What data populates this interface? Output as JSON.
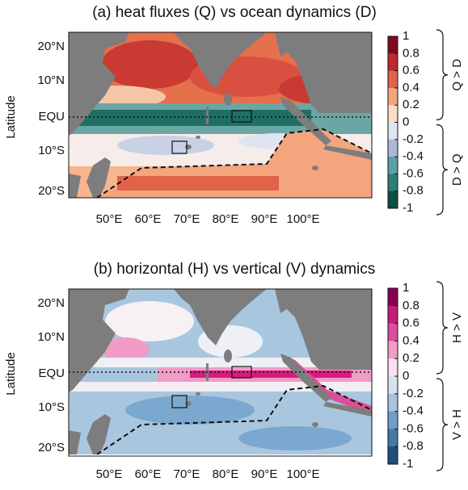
{
  "panels": [
    {
      "title": "(a) heat fluxes (Q) vs ocean dynamics (D)",
      "y_label": "Latitude",
      "lat_labels": [
        "20°N",
        "10°N",
        "EQU",
        "10°S",
        "20°S"
      ],
      "lon_labels": [
        "50°E",
        "60°E",
        "70°E",
        "80°E",
        "90°E",
        "100°E"
      ],
      "colorbar": {
        "ticks": [
          1,
          0.8,
          0.6,
          0.4,
          0.2,
          0,
          -0.2,
          -0.4,
          -0.6,
          -0.8,
          -1
        ],
        "colors": [
          "#7f0a1e",
          "#c0282f",
          "#e0634a",
          "#f4a57e",
          "#fbdcc8",
          "#dfe4f0",
          "#aab9d6",
          "#5f9fa8",
          "#2d7f74",
          "#0c4f44"
        ],
        "upper_label": "Q > D",
        "lower_label": "D > Q"
      }
    },
    {
      "title": "(b) horizontal (H) vs vertical (V) dynamics",
      "y_label": "Latitude",
      "lat_labels": [
        "20°N",
        "10°N",
        "EQU",
        "10°S",
        "20°S"
      ],
      "lon_labels": [
        "50°E",
        "60°E",
        "70°E",
        "80°E",
        "90°E",
        "100°E"
      ],
      "colorbar": {
        "ticks": [
          1,
          0.8,
          0.6,
          0.4,
          0.2,
          0,
          -0.2,
          -0.4,
          -0.6,
          -0.8,
          -1
        ],
        "colors": [
          "#8b0050",
          "#c51b7d",
          "#de4d9a",
          "#f09cc6",
          "#fbe0ef",
          "#d6e2ee",
          "#a6c4de",
          "#6f9fc8",
          "#3f7aa8",
          "#1f4e79"
        ],
        "upper_label": "H > V",
        "lower_label": "V > H"
      }
    }
  ]
}
